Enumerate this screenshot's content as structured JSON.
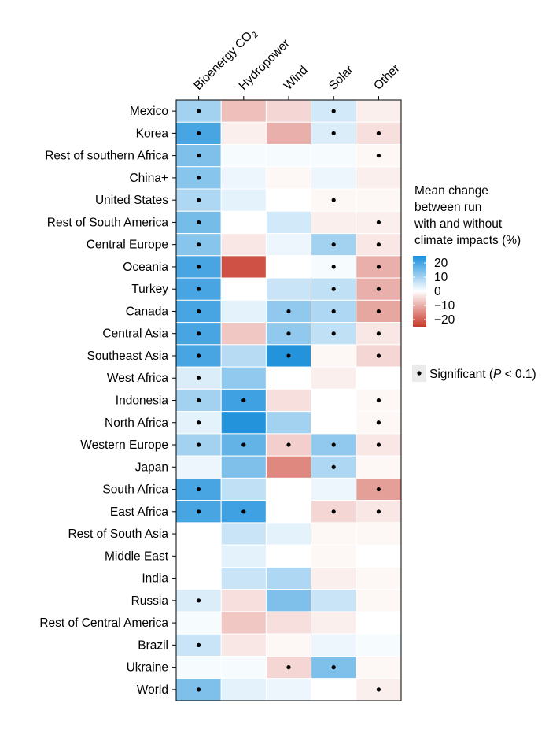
{
  "chart_data": {
    "type": "heatmap",
    "columns": [
      "Bioenergy CO",
      "Hydropower",
      "Wind",
      "Solar",
      "Other"
    ],
    "first_column_subscript": "2",
    "rows": [
      "Mexico",
      "Korea",
      "Rest of southern Africa",
      "China+",
      "United States",
      "Rest of South America",
      "Central Europe",
      "Oceania",
      "Turkey",
      "Canada",
      "Central Asia",
      "Southeast Asia",
      "West Africa",
      "Indonesia",
      "North Africa",
      "Western Europe",
      "Japan",
      "South Africa",
      "East Africa",
      "Rest of South Asia",
      "Middle East",
      "India",
      "Russia",
      "Rest of Central America",
      "Brazil",
      "Ukraine",
      "World"
    ],
    "values": [
      [
        10,
        -8,
        -5,
        5,
        -2
      ],
      [
        20,
        -2,
        -10,
        4,
        -4
      ],
      [
        14,
        1,
        1,
        1,
        -1
      ],
      [
        13,
        2,
        -1,
        2,
        -2
      ],
      [
        9,
        3,
        0,
        -1,
        -1
      ],
      [
        15,
        0,
        5,
        -2,
        -2
      ],
      [
        13,
        -3,
        2,
        10,
        -3
      ],
      [
        20,
        -22,
        0,
        1,
        -10
      ],
      [
        20,
        0,
        6,
        7,
        -10
      ],
      [
        20,
        3,
        12,
        9,
        -11
      ],
      [
        20,
        -7,
        12,
        7,
        -3
      ],
      [
        20,
        8,
        24,
        -1,
        -5
      ],
      [
        4,
        12,
        0,
        -2,
        0
      ],
      [
        10,
        21,
        -4,
        0,
        -1
      ],
      [
        3,
        24,
        10,
        0,
        -1
      ],
      [
        10,
        17,
        -6,
        12,
        -3
      ],
      [
        2,
        14,
        -15,
        9,
        -1
      ],
      [
        20,
        7,
        0,
        2,
        -12
      ],
      [
        20,
        21,
        0,
        -5,
        -3
      ],
      [
        0,
        6,
        3,
        -1,
        -1
      ],
      [
        0,
        3,
        0,
        -1,
        0
      ],
      [
        0,
        6,
        9,
        -2,
        -1
      ],
      [
        4,
        -4,
        14,
        6,
        -1
      ],
      [
        1,
        -7,
        -4,
        -2,
        0
      ],
      [
        6,
        -3,
        -1,
        2,
        1
      ],
      [
        1,
        1,
        -5,
        14,
        -1
      ],
      [
        14,
        3,
        2,
        0,
        -2
      ]
    ],
    "significant": [
      [
        1,
        0,
        0,
        1,
        0
      ],
      [
        1,
        0,
        0,
        1,
        1
      ],
      [
        1,
        0,
        0,
        0,
        1
      ],
      [
        1,
        0,
        0,
        0,
        0
      ],
      [
        1,
        0,
        0,
        1,
        0
      ],
      [
        1,
        0,
        0,
        0,
        1
      ],
      [
        1,
        0,
        0,
        1,
        1
      ],
      [
        1,
        0,
        0,
        1,
        1
      ],
      [
        1,
        0,
        0,
        1,
        1
      ],
      [
        1,
        0,
        1,
        1,
        1
      ],
      [
        1,
        0,
        1,
        1,
        1
      ],
      [
        1,
        0,
        1,
        0,
        1
      ],
      [
        1,
        0,
        0,
        0,
        0
      ],
      [
        1,
        1,
        0,
        0,
        1
      ],
      [
        1,
        0,
        0,
        0,
        1
      ],
      [
        1,
        1,
        1,
        1,
        1
      ],
      [
        0,
        0,
        0,
        1,
        0
      ],
      [
        1,
        0,
        0,
        0,
        1
      ],
      [
        1,
        1,
        0,
        1,
        1
      ],
      [
        0,
        0,
        0,
        0,
        0
      ],
      [
        0,
        0,
        0,
        0,
        0
      ],
      [
        0,
        0,
        0,
        0,
        0
      ],
      [
        1,
        0,
        0,
        0,
        0
      ],
      [
        0,
        0,
        0,
        0,
        0
      ],
      [
        1,
        0,
        0,
        0,
        0
      ],
      [
        0,
        0,
        1,
        1,
        0
      ],
      [
        1,
        0,
        0,
        0,
        1
      ]
    ],
    "color_range": [
      -25,
      25
    ],
    "colors": {
      "negative": "#c9382a",
      "neutral": "#ffffff",
      "positive": "#1a8fdb"
    },
    "legend": {
      "title_lines": [
        "Mean change",
        "between run",
        "with and without",
        "climate impacts (%)"
      ],
      "ticks": [
        "20",
        "10",
        "0",
        "−10",
        "−20"
      ],
      "tick_values": [
        20,
        10,
        0,
        -10,
        -20
      ]
    },
    "significance_legend": {
      "label_prefix": "Significant (",
      "label_p": "P",
      "label_suffix": " < 0.1)"
    }
  }
}
